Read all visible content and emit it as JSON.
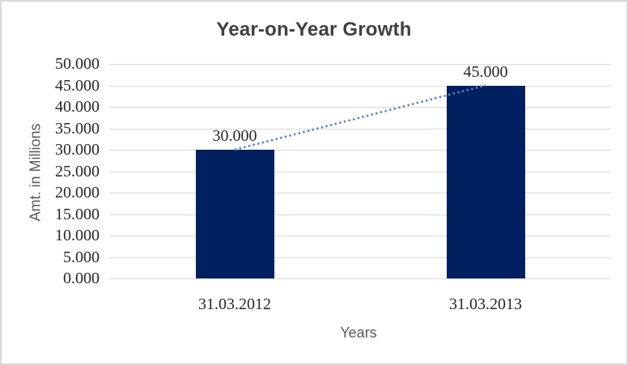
{
  "chart_data": {
    "type": "bar",
    "title": "Year-on-Year Growth",
    "xlabel": "Years",
    "ylabel": "Amt. in Millions",
    "categories": [
      "31.03.2012",
      "31.03.2013"
    ],
    "values": [
      30,
      45
    ],
    "data_labels": [
      "30.000",
      "45.000"
    ],
    "y_ticks": [
      "0.000",
      "5.000",
      "10.000",
      "15.000",
      "20.000",
      "25.000",
      "30.000",
      "35.000",
      "40.000",
      "45.000",
      "50.000"
    ],
    "ylim": [
      0,
      50
    ],
    "y_step": 5,
    "grid": true,
    "legend": "none",
    "trendline": {
      "style": "dotted",
      "from_category": "31.03.2012",
      "from_value": 30,
      "to_category": "31.03.2013",
      "to_value": 45
    },
    "colors": {
      "bar": "#002060",
      "trendline": "#4f86c6",
      "gridline": "#d9d9d9",
      "title_text": "#404040",
      "axis_title_text": "#595959",
      "tick_label_text": "#262626",
      "frame_border": "#d9d9d9",
      "background": "#ffffff"
    }
  }
}
